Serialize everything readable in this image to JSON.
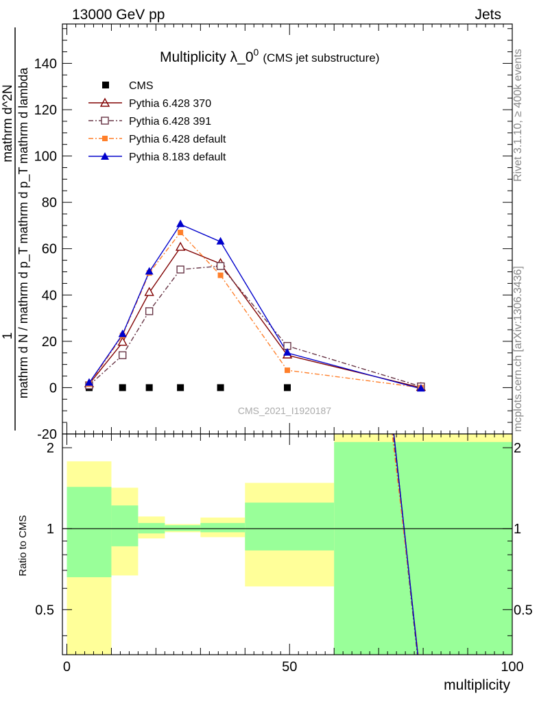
{
  "header": {
    "left_label": "13000 GeV pp",
    "right_label": "Jets",
    "side_label_top": "Rivet 3.1.10, ≥ 400k events",
    "side_label_bottom": "mcplots.cern.ch [arXiv:1306.3436]"
  },
  "colors": {
    "cms": "#000000",
    "p370": "#800000",
    "p391": "#663344",
    "p6def": "#ff7f2a",
    "p8def": "#0000cc",
    "band_inner": "#99ff99",
    "band_outer": "#ffff99"
  },
  "chart_data": [
    {
      "type": "line",
      "title": "Multiplicity λ_0",
      "title_superscript": "0",
      "subtitle": "(CMS jet substructure)",
      "analysis_label": "CMS_2021_I1920187",
      "xlabel": "multiplicity",
      "ylabel": "1 / (mathrm d N / mathrm d p_T mathrm d p_T mathrm d lambda) · mathrm d^2N / ...",
      "ylabel_lines": [
        "1",
        "mathrm d N / mathrm d p_T mathrm d p_T mathrm d lambda",
        "mathrm d^2N"
      ],
      "xlim": [
        -1,
        100
      ],
      "ylim": [
        -20,
        157
      ],
      "yticks": [
        -20,
        0,
        20,
        40,
        60,
        80,
        100,
        120,
        140
      ],
      "legend_position": "top-left",
      "series": [
        {
          "name": "CMS",
          "marker": "filled-square",
          "line": "none",
          "x": [
            5,
            12.5,
            18.5,
            25.5,
            34.5,
            49.5
          ],
          "y": [
            0,
            0,
            0,
            0,
            0,
            0
          ]
        },
        {
          "name": "Pythia 6.428 370",
          "marker": "open-triangle",
          "line": "solid",
          "x": [
            5,
            12.5,
            18.5,
            25.5,
            34.5,
            49.5,
            79.5
          ],
          "y": [
            1.5,
            19.5,
            41,
            60.5,
            53.5,
            14,
            0
          ]
        },
        {
          "name": "Pythia 6.428 391",
          "marker": "open-square",
          "line": "dashdot",
          "x": [
            5,
            12.5,
            18.5,
            25.5,
            34.5,
            49.5,
            79.5
          ],
          "y": [
            1,
            14,
            33,
            51,
            52.5,
            18,
            0.5
          ]
        },
        {
          "name": "Pythia 6.428 default",
          "marker": "small-square",
          "line": "dashdot",
          "x": [
            5,
            12.5,
            18.5,
            25.5,
            34.5,
            49.5,
            79.5
          ],
          "y": [
            1.5,
            22.5,
            49.5,
            67,
            48.5,
            7.5,
            0
          ]
        },
        {
          "name": "Pythia 8.183 default",
          "marker": "filled-triangle",
          "line": "solid",
          "x": [
            5,
            12.5,
            18.5,
            25.5,
            34.5,
            49.5,
            79.5
          ],
          "y": [
            2,
            23,
            50,
            70.5,
            63,
            15,
            -0.5
          ]
        }
      ]
    },
    {
      "type": "line",
      "title": "Ratio to CMS",
      "xlabel": "multiplicity",
      "ylabel": "Ratio to CMS",
      "xlim": [
        -1,
        100
      ],
      "ylim": [
        0.34,
        2.25
      ],
      "yscale": "log",
      "yticks": [
        0.5,
        1,
        2
      ],
      "ytick_labels": [
        "0.5",
        "1",
        "2"
      ],
      "xticks": [
        0,
        50,
        100
      ],
      "xtick_labels": [
        "0",
        "50",
        "100"
      ],
      "reference_line": 1,
      "bands": [
        {
          "x0": 0,
          "x1": 10,
          "inner": [
            0.66,
            1.43
          ],
          "outer": [
            0.3,
            1.78
          ]
        },
        {
          "x0": 10,
          "x1": 16,
          "inner": [
            0.86,
            1.22
          ],
          "outer": [
            0.67,
            1.42
          ]
        },
        {
          "x0": 16,
          "x1": 22,
          "inner": [
            0.96,
            1.05
          ],
          "outer": [
            0.92,
            1.11
          ]
        },
        {
          "x0": 22,
          "x1": 30,
          "inner": [
            0.98,
            1.03
          ],
          "outer": [
            0.97,
            1.04
          ]
        },
        {
          "x0": 30,
          "x1": 40,
          "inner": [
            0.97,
            1.05
          ],
          "outer": [
            0.93,
            1.1
          ]
        },
        {
          "x0": 40,
          "x1": 60,
          "inner": [
            0.83,
            1.25
          ],
          "outer": [
            0.61,
            1.48
          ]
        },
        {
          "x0": 60,
          "x1": 100,
          "inner": [
            0.3,
            2.1
          ],
          "outer": [
            0.3,
            3.0
          ]
        }
      ],
      "ratio_lines": [
        {
          "name": "Pythia 6.428 370",
          "x": [
            73,
            78.8
          ],
          "y": [
            2.6,
            0.34
          ]
        },
        {
          "name": "Pythia 6.428 391",
          "x": [
            72.8,
            78.7
          ],
          "y": [
            2.6,
            0.34
          ]
        },
        {
          "name": "Pythia 6.428 default",
          "x": [
            72.6,
            78.9
          ],
          "y": [
            2.6,
            0.34
          ]
        },
        {
          "name": "Pythia 8.183 default",
          "x": [
            73,
            78.8
          ],
          "y": [
            2.6,
            0.34
          ]
        }
      ]
    }
  ]
}
